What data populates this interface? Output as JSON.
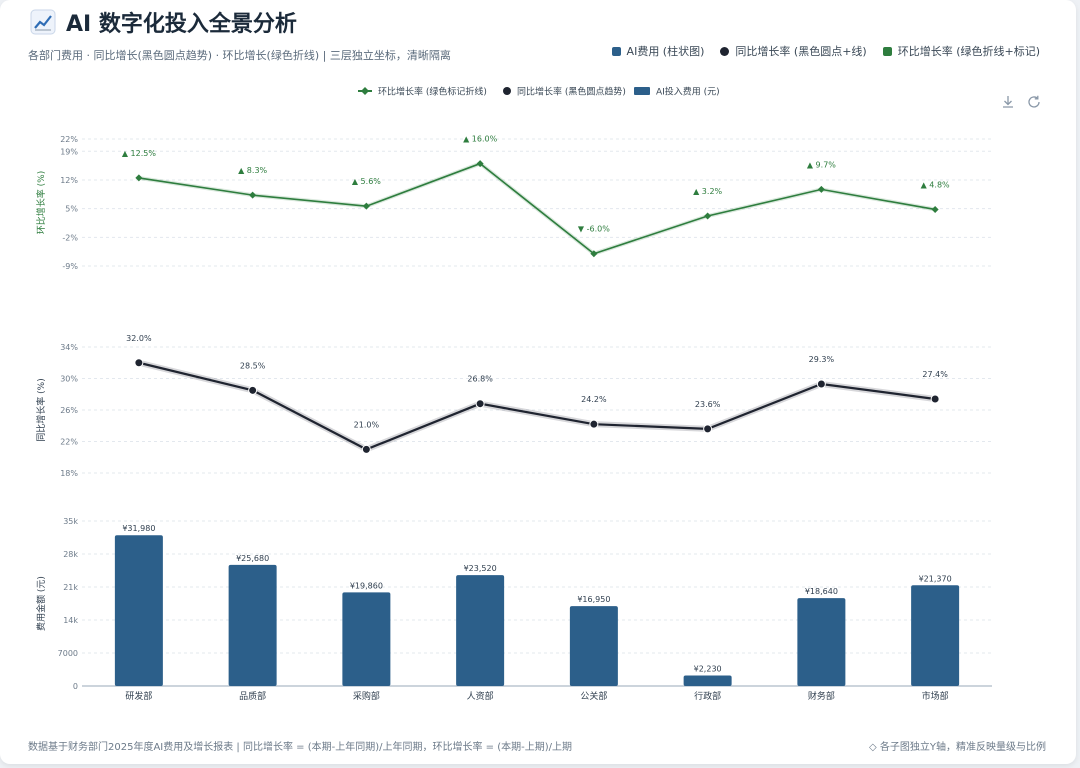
{
  "header": {
    "title": "AI 数字化投入全景分析",
    "subtitle": "各部门费用 · 同比增长(黑色圆点趋势) · 环比增长(绿色折线) | 三层独立坐标，清晰隔离"
  },
  "top_legend": [
    {
      "label": "AI费用 (柱状图)",
      "color": "#2c5f8a",
      "shape": "square"
    },
    {
      "label": "同比增长率 (黑色圆点+线)",
      "color": "#1f2430",
      "shape": "circle"
    },
    {
      "label": "环比增长率 (绿色折线+标记)",
      "color": "#2e7d3e",
      "shape": "square"
    }
  ],
  "tools": {
    "download_icon": "download-icon",
    "refresh_icon": "refresh-icon"
  },
  "footer": {
    "left": "数据基于财务部门2025年度AI费用及增长报表 | 同比增长率 = (本期-上年同期)/上年同期，环比增长率 = (本期-上期)/上期",
    "right": "◇ 各子图独立Y轴，精准反映量级与比例"
  },
  "chart_data": {
    "type": "bar",
    "categories": [
      "研发部",
      "品质部",
      "采购部",
      "人资部",
      "公关部",
      "行政部",
      "财务部",
      "市场部"
    ],
    "legend": [
      {
        "name": "环比增长率 (绿色标记折线)",
        "color": "#2e7d3e",
        "shape": "diamond-line"
      },
      {
        "name": "同比增长率 (黑色圆点趋势)",
        "color": "#1f2430",
        "shape": "circle"
      },
      {
        "name": "AI投入费用 (元)",
        "color": "#2c5f8a",
        "shape": "rect"
      }
    ],
    "panels": [
      {
        "id": "mom",
        "type": "line",
        "ylabel": "环比增长率 (%)",
        "color": "#2e7d3e",
        "ylim": [
          -9,
          22
        ],
        "yticks": [
          -9,
          -2,
          5,
          12,
          19,
          22
        ],
        "ytick_labels": [
          "-9%",
          "-2%",
          "5%",
          "12%",
          "19%",
          "22%"
        ],
        "values": [
          12.5,
          8.3,
          5.6,
          16.0,
          -6.0,
          3.2,
          9.7,
          4.8
        ],
        "labels": [
          "▲ 12.5%",
          "▲ 8.3%",
          "▲ 5.6%",
          "▲ 16.0%",
          "▼ -6.0%",
          "▲ 3.2%",
          "▲ 9.7%",
          "▲ 4.8%"
        ]
      },
      {
        "id": "yoy",
        "type": "line",
        "ylabel": "同比增长率 (%)",
        "color": "#1f2430",
        "ylim": [
          18,
          34
        ],
        "yticks": [
          18,
          22,
          26,
          30,
          34
        ],
        "ytick_labels": [
          "18%",
          "22%",
          "26%",
          "30%",
          "34%"
        ],
        "values": [
          32.0,
          28.5,
          21.0,
          26.8,
          24.2,
          23.6,
          29.3,
          27.4
        ],
        "labels": [
          "32.0%",
          "28.5%",
          "21.0%",
          "26.8%",
          "24.2%",
          "23.6%",
          "29.3%",
          "27.4%"
        ]
      },
      {
        "id": "cost",
        "type": "bar",
        "ylabel": "费用金额 (元)",
        "color": "#2c5f8a",
        "ylim": [
          0,
          35000
        ],
        "yticks": [
          0,
          7000,
          14000,
          21000,
          28000,
          35000
        ],
        "ytick_labels": [
          "0",
          "7000",
          "14k",
          "21k",
          "28k",
          "35k"
        ],
        "values": [
          31980,
          25680,
          19860,
          23520,
          16950,
          2230,
          18640,
          21370
        ],
        "labels": [
          "¥31,980",
          "¥25,680",
          "¥19,860",
          "¥23,520",
          "¥16,950",
          "¥2,230",
          "¥18,640",
          "¥21,370"
        ]
      }
    ]
  }
}
